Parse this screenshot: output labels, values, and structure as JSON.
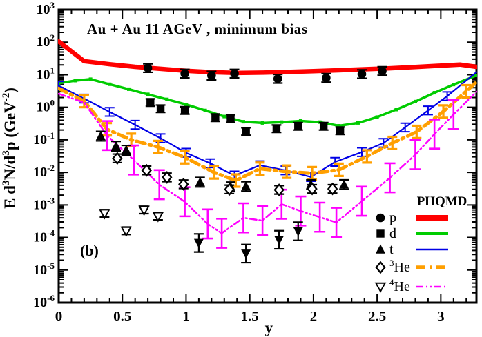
{
  "title": "Au + Au 11 AGeV , minimum bias",
  "panel_label": "(b)",
  "axes": {
    "x": {
      "label": "y",
      "min": 0,
      "max": 3.28,
      "major_ticks": [
        0,
        0.5,
        1,
        1.5,
        2,
        2.5,
        3
      ],
      "major_labels": [
        "0",
        "0.5",
        "1",
        "1.5",
        "2",
        "2.5",
        "3"
      ],
      "minor_step": 0.1
    },
    "y": {
      "scale": "log",
      "exp_max": 3,
      "exp_min": -6,
      "label_parts": [
        {
          "t": "E d"
        },
        {
          "t": "3",
          "sup": true
        },
        {
          "t": "N/d"
        },
        {
          "t": "3",
          "sup": true
        },
        {
          "t": "p (GeV"
        },
        {
          "t": "-2",
          "sup": true
        },
        {
          "t": ")"
        }
      ]
    }
  },
  "legend": {
    "header": "PHQMD",
    "items": [
      {
        "id": "p",
        "label_parts": [
          {
            "t": "p"
          }
        ],
        "marker": "circle-filled",
        "line": {
          "color": "#ff0000",
          "width": 8,
          "dash": "solid"
        }
      },
      {
        "id": "d",
        "label_parts": [
          {
            "t": "d"
          }
        ],
        "marker": "square-filled",
        "line": {
          "color": "#00cc00",
          "width": 4,
          "dash": "solid"
        }
      },
      {
        "id": "t",
        "label_parts": [
          {
            "t": "t"
          }
        ],
        "marker": "triangle-up-filled",
        "line": {
          "color": "#0000e6",
          "width": 2.5,
          "dash": "solid"
        }
      },
      {
        "id": "he3",
        "label_parts": [
          {
            "t": "3",
            "sup": true
          },
          {
            "t": "He"
          }
        ],
        "marker": "diamond-open",
        "line": {
          "color": "#ff9f00",
          "width": 5.5,
          "dash": "dashdot"
        }
      },
      {
        "id": "he4",
        "label_parts": [
          {
            "t": "4",
            "sup": true
          },
          {
            "t": "He"
          }
        ],
        "marker": "triangle-down-open",
        "line": {
          "color": "#ff00ff",
          "width": 2.5,
          "dash": "dashdotdot"
        }
      }
    ]
  },
  "chart_data": {
    "type": "line",
    "title": "Au + Au 11 AGeV , minimum bias",
    "xlabel": "y",
    "ylabel": "E d3N/d3p (GeV-2)",
    "xlim": [
      0,
      3.28
    ],
    "ylim_log10": [
      -6,
      3
    ],
    "grid": false,
    "legend_position": "lower right",
    "series": [
      {
        "id": "p-model",
        "name": "p PHQMD",
        "role": "model",
        "color": "#ff0000",
        "line": {
          "width": 6.5,
          "dash": "solid"
        },
        "points": [
          [
            0,
            105
          ],
          [
            0.2,
            26
          ],
          [
            0.4,
            21
          ],
          [
            0.6,
            17.5
          ],
          [
            0.8,
            15.2
          ],
          [
            1.0,
            13.2
          ],
          [
            1.2,
            12.0
          ],
          [
            1.4,
            11.3
          ],
          [
            1.6,
            11.6
          ],
          [
            1.8,
            12.2
          ],
          [
            2.0,
            12.9
          ],
          [
            2.2,
            13.7
          ],
          [
            2.4,
            14.7
          ],
          [
            2.6,
            15.8
          ],
          [
            2.8,
            17.2
          ],
          [
            3.0,
            19.0
          ],
          [
            3.15,
            20.5
          ],
          [
            3.28,
            17.5
          ]
        ]
      },
      {
        "id": "d-model",
        "name": "d PHQMD",
        "role": "model",
        "color": "#00cc00",
        "line": {
          "width": 3.5,
          "dash": "solid"
        },
        "node_marker": "square-small",
        "points": [
          [
            0,
            5.5
          ],
          [
            0.13,
            6.6
          ],
          [
            0.25,
            7.3
          ],
          [
            0.4,
            5.1
          ],
          [
            0.55,
            3.6
          ],
          [
            0.7,
            2.5
          ],
          [
            0.85,
            1.75
          ],
          [
            1.0,
            1.22
          ],
          [
            1.15,
            0.8
          ],
          [
            1.3,
            0.52
          ],
          [
            1.45,
            0.36
          ],
          [
            1.6,
            0.33
          ],
          [
            1.75,
            0.35
          ],
          [
            1.9,
            0.38
          ],
          [
            2.05,
            0.35
          ],
          [
            2.2,
            0.27
          ],
          [
            2.35,
            0.33
          ],
          [
            2.5,
            0.5
          ],
          [
            2.65,
            0.85
          ],
          [
            2.8,
            1.5
          ],
          [
            2.95,
            2.8
          ],
          [
            3.1,
            5.0
          ],
          [
            3.28,
            9.5
          ]
        ]
      },
      {
        "id": "t-model",
        "name": "t PHQMD",
        "role": "model",
        "color": "#0000e6",
        "line": {
          "width": 2.2,
          "dash": "solid"
        },
        "err": {
          "factor": 1.35,
          "cap": 7,
          "width": 2,
          "skip_first": 0,
          "skip_last": 1
        },
        "points": [
          [
            0,
            4.6
          ],
          [
            0.2,
            1.85
          ],
          [
            0.4,
            0.72
          ],
          [
            0.6,
            0.29
          ],
          [
            0.8,
            0.112
          ],
          [
            1.0,
            0.04
          ],
          [
            1.19,
            0.019
          ],
          [
            1.38,
            0.008
          ],
          [
            1.58,
            0.0165
          ],
          [
            1.78,
            0.0115
          ],
          [
            1.98,
            0.0072
          ],
          [
            2.17,
            0.021
          ],
          [
            2.38,
            0.042
          ],
          [
            2.55,
            0.08
          ],
          [
            2.72,
            0.24
          ],
          [
            2.9,
            0.8
          ],
          [
            3.05,
            2.2
          ],
          [
            3.28,
            12
          ]
        ]
      },
      {
        "id": "he3-model",
        "name": "3He PHQMD",
        "role": "model",
        "color": "#ff9f00",
        "line": {
          "width": 5,
          "dash": "dashdot"
        },
        "err": {
          "factor": 1.55,
          "cap": 7,
          "width": 3.2,
          "skip_first": 1,
          "skip_last": 1
        },
        "points": [
          [
            0,
            3.8
          ],
          [
            0.2,
            1.55
          ],
          [
            0.38,
            0.21
          ],
          [
            0.57,
            0.1
          ],
          [
            0.78,
            0.06
          ],
          [
            0.99,
            0.029
          ],
          [
            1.22,
            0.01
          ],
          [
            1.39,
            0.0056
          ],
          [
            1.58,
            0.013
          ],
          [
            1.79,
            0.0105
          ],
          [
            1.99,
            0.0094
          ],
          [
            2.2,
            0.012
          ],
          [
            2.42,
            0.031
          ],
          [
            2.62,
            0.08
          ],
          [
            2.81,
            0.175
          ],
          [
            3.02,
            0.74
          ],
          [
            3.2,
            3.1
          ],
          [
            3.28,
            6.0
          ]
        ]
      },
      {
        "id": "he4-model",
        "name": "4He PHQMD",
        "role": "model",
        "color": "#ff00ff",
        "line": {
          "width": 2.5,
          "dash": "dashdotdot"
        },
        "err": {
          "factor": 2.8,
          "cap": 8,
          "width": 2.6,
          "skip_first": 2,
          "skip_last": 1
        },
        "points": [
          [
            0,
            2.6
          ],
          [
            0.2,
            1.4
          ],
          [
            0.38,
            0.135
          ],
          [
            0.59,
            0.024
          ],
          [
            0.79,
            0.0042
          ],
          [
            0.99,
            0.00125
          ],
          [
            1.17,
            0.00026
          ],
          [
            1.28,
            0.000135
          ],
          [
            1.45,
            0.0004
          ],
          [
            1.6,
            0.00033
          ],
          [
            1.75,
            0.00105
          ],
          [
            1.9,
            0.00065
          ],
          [
            2.05,
            0.00042
          ],
          [
            2.18,
            0.00029
          ],
          [
            2.38,
            0.0013
          ],
          [
            2.6,
            0.0068
          ],
          [
            2.8,
            0.035
          ],
          [
            2.95,
            0.15
          ],
          [
            3.1,
            0.6
          ],
          [
            3.28,
            3.0
          ]
        ]
      },
      {
        "id": "p-data",
        "name": "p",
        "role": "data",
        "color": "#000000",
        "marker": "circle-filled",
        "err": {
          "factor": 1.35,
          "cap": 7,
          "width": 2.2
        },
        "points": [
          [
            0.7,
            16
          ],
          [
            0.99,
            10.8
          ],
          [
            1.2,
            9.4
          ],
          [
            1.38,
            10.8
          ],
          [
            1.72,
            7.5
          ],
          [
            2.1,
            8.0
          ],
          [
            2.38,
            10.5
          ],
          [
            2.54,
            13
          ]
        ]
      },
      {
        "id": "d-data",
        "name": "d",
        "role": "data",
        "color": "#000000",
        "marker": "square-filled",
        "err": {
          "factor": 1.3,
          "cap": 7,
          "width": 2.2
        },
        "points": [
          [
            0.72,
            1.4
          ],
          [
            0.8,
            0.9
          ],
          [
            0.99,
            0.8
          ],
          [
            1.23,
            0.48
          ],
          [
            1.35,
            0.45
          ],
          [
            1.47,
            0.18
          ],
          [
            1.71,
            0.22
          ],
          [
            1.88,
            0.26
          ],
          [
            2.08,
            0.26
          ],
          [
            2.21,
            0.19
          ]
        ]
      },
      {
        "id": "t-data",
        "name": "t",
        "role": "data",
        "color": "#000000",
        "marker": "triangle-up-filled",
        "err": {
          "factor": 1.4,
          "cap": 7,
          "width": 2.2
        },
        "points": [
          [
            0.33,
            0.13
          ],
          [
            0.45,
            0.064
          ],
          [
            0.53,
            0.048
          ],
          [
            1.11,
            0.005
          ],
          [
            1.35,
            0.0036
          ],
          [
            1.47,
            0.0037
          ],
          [
            1.98,
            0.0042
          ],
          [
            2.24,
            0.0042
          ]
        ]
      },
      {
        "id": "he3-data",
        "name": "3He",
        "role": "data",
        "color": "#000000",
        "marker": "diamond-open",
        "err": {
          "factor": 1.35,
          "cap": 7,
          "width": 2.2
        },
        "points": [
          [
            0.46,
            0.027
          ],
          [
            0.69,
            0.0115
          ],
          [
            0.85,
            0.007
          ],
          [
            0.98,
            0.0043
          ],
          [
            1.34,
            0.003
          ],
          [
            1.73,
            0.0029
          ],
          [
            1.99,
            0.0031
          ],
          [
            2.15,
            0.0031
          ]
        ]
      },
      {
        "id": "he4-data-open",
        "name": "4He",
        "role": "data",
        "color": "#000000",
        "marker": "triangle-down-open",
        "err": {
          "factor": 1.3,
          "cap": 7,
          "width": 2.2
        },
        "points": [
          [
            0.36,
            0.00055
          ],
          [
            0.53,
            0.00016
          ],
          [
            0.67,
            0.0007
          ],
          [
            0.78,
            0.00045
          ]
        ]
      },
      {
        "id": "he4-data-filled",
        "name": "4He",
        "role": "data",
        "color": "#000000",
        "marker": "triangle-down-filled",
        "err": {
          "factor": 1.9,
          "cap": 7,
          "width": 2.2
        },
        "points": [
          [
            1.1,
            6.8e-05
          ],
          [
            1.47,
            3.2e-05
          ],
          [
            1.73,
            8.5e-05
          ],
          [
            1.88,
            0.000155
          ]
        ]
      }
    ]
  }
}
